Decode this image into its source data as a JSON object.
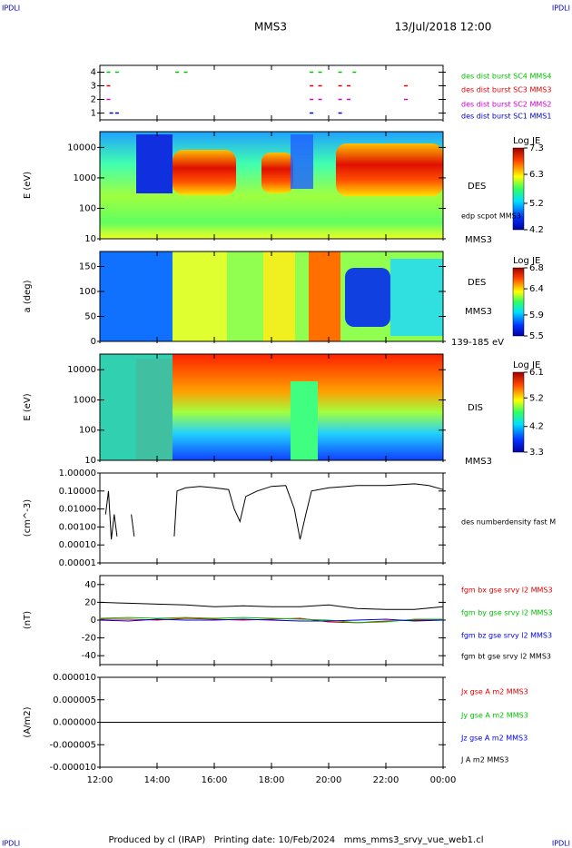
{
  "header": {
    "corner": "IPDLI",
    "title": "MMS3",
    "date": "13/Jul/2018 12:00"
  },
  "footer": {
    "text": "Produced by cl (IRAP)   Printing date: 10/Feb/2024   mms_mms3_srvy_vue_web1.cl"
  },
  "chart_data": [
    {
      "type": "scatter",
      "xlim": [
        12,
        24
      ],
      "ylim": [
        0.5,
        4.5
      ],
      "yticks": [
        1,
        2,
        3,
        4
      ],
      "series": [
        {
          "name": "des dist burst SC1 MMS1",
          "color": "#0000c0",
          "x": [
            12.4,
            12.6,
            19.4,
            20.4
          ],
          "values": [
            1,
            1,
            1,
            1
          ]
        },
        {
          "name": "des dist burst SC2 MMS2",
          "color": "#d000d0",
          "x": [
            12.3,
            19.4,
            19.7,
            20.4,
            20.7,
            22.7
          ],
          "values": [
            2,
            2,
            2,
            2,
            2,
            2
          ]
        },
        {
          "name": "des dist burst SC3 MMS3",
          "color": "#e00000",
          "x": [
            12.3,
            19.4,
            19.7,
            20.4,
            20.7,
            22.7
          ],
          "values": [
            3,
            3,
            3,
            3,
            3,
            3
          ]
        },
        {
          "name": "des dist burst SC4 MMS4",
          "color": "#00c000",
          "x": [
            12.3,
            12.6,
            14.7,
            15.0,
            19.4,
            19.7,
            20.4,
            20.9
          ],
          "values": [
            4,
            4,
            4,
            4,
            4,
            4,
            4,
            4
          ]
        }
      ]
    },
    {
      "type": "spectrogram",
      "ylabel": "E (eV)",
      "xlim": [
        12,
        24
      ],
      "ylim": [
        10,
        33000
      ],
      "log": true,
      "yticks": [
        10,
        100,
        1000,
        10000
      ],
      "zlabel": "Log JE",
      "zlim": [
        4.2,
        7.3
      ],
      "zticks": [
        4.2,
        5.2,
        6.3,
        7.3
      ],
      "labels": [
        "DES",
        "edp scpot MMS3",
        "MMS3"
      ]
    },
    {
      "type": "spectrogram",
      "ylabel": "a (deg)",
      "xlim": [
        12,
        24
      ],
      "ylim": [
        0,
        180
      ],
      "yticks": [
        0,
        50,
        100,
        150
      ],
      "zlabel": "Log JE",
      "zlim": [
        5.5,
        6.8
      ],
      "zticks": [
        5.5,
        5.9,
        6.4,
        6.8
      ],
      "labels": [
        "DES",
        "MMS3",
        "139-185 eV"
      ]
    },
    {
      "type": "spectrogram",
      "ylabel": "E (eV)",
      "xlim": [
        12,
        24
      ],
      "ylim": [
        10,
        33000
      ],
      "log": true,
      "yticks": [
        10,
        100,
        1000,
        10000
      ],
      "zlabel": "Log JE",
      "zlim": [
        3.3,
        6.1
      ],
      "zticks": [
        3.3,
        4.2,
        5.2,
        6.1
      ],
      "labels": [
        "DIS",
        "MMS3"
      ]
    },
    {
      "type": "line",
      "ylabel": "(cm^-3)",
      "xlim": [
        12,
        24
      ],
      "ylim": [
        1e-05,
        1
      ],
      "log": true,
      "yticks": [
        {
          "value": 1,
          "label": "1.00000"
        },
        {
          "value": 0.1,
          "label": "0.10000"
        },
        {
          "value": 0.01,
          "label": "0.01000"
        },
        {
          "value": 0.001,
          "label": "0.00100"
        },
        {
          "value": 0.0001,
          "label": "0.00010"
        },
        {
          "value": 1e-05,
          "label": "0.00001"
        }
      ],
      "x": [
        12.2,
        12.3,
        12.4,
        12.5,
        12.6,
        12.7,
        13.1,
        13.2,
        13.3,
        14.6,
        14.7,
        15.0,
        15.5,
        16.0,
        16.5,
        16.7,
        16.9,
        17.1,
        17.5,
        18.0,
        18.5,
        18.8,
        19.0,
        19.2,
        19.4,
        20.0,
        21.0,
        22.0,
        23.0,
        23.5,
        24.0
      ],
      "series": [
        {
          "name": "des numberdensity fast M",
          "color": "#000000",
          "values": [
            0.005,
            0.1,
            0.0002,
            0.005,
            0.0003,
            null,
            0.005,
            0.0003,
            null,
            0.0003,
            0.1,
            0.15,
            0.18,
            0.15,
            0.12,
            0.01,
            0.002,
            0.05,
            0.1,
            0.18,
            0.2,
            0.01,
            0.0002,
            0.005,
            0.1,
            0.15,
            0.2,
            0.2,
            0.25,
            0.2,
            0.12
          ]
        }
      ]
    },
    {
      "type": "line",
      "ylabel": "(nT)",
      "xlim": [
        12,
        24
      ],
      "ylim": [
        -50,
        50
      ],
      "yticks": [
        40,
        20,
        0,
        -20,
        -40
      ],
      "x": [
        12,
        13,
        14,
        15,
        16,
        17,
        18,
        19,
        20,
        21,
        22,
        23,
        24
      ],
      "series": [
        {
          "name": "fgm bx gse srvy l2 MMS3",
          "color": "#e00000",
          "values": [
            1,
            1,
            0,
            2,
            1,
            0,
            1,
            2,
            -2,
            -3,
            -1,
            0,
            0
          ]
        },
        {
          "name": "fgm by gse srvy l2 MMS3",
          "color": "#00c000",
          "values": [
            2,
            3,
            2,
            3,
            2,
            3,
            2,
            1,
            0,
            -3,
            -2,
            1,
            1
          ]
        },
        {
          "name": "fgm bz gse srvy l2 MMS3",
          "color": "#0000e0",
          "values": [
            0,
            -1,
            1,
            0,
            0,
            1,
            0,
            -1,
            -1,
            0,
            1,
            -1,
            0
          ]
        },
        {
          "name": "fgm bt gse srvy l2 MMS3",
          "color": "#000000",
          "values": [
            20,
            19,
            18,
            17,
            15,
            16,
            15,
            15,
            17,
            13,
            12,
            12,
            15
          ]
        }
      ]
    },
    {
      "type": "line",
      "ylabel": "(A/m2)",
      "xlim": [
        12,
        24
      ],
      "ylim": [
        -1e-05,
        1e-05
      ],
      "yticks": [
        {
          "value": 1e-05,
          "label": "0.000010"
        },
        {
          "value": 5e-06,
          "label": "0.000005"
        },
        {
          "value": 0,
          "label": "0.000000"
        },
        {
          "value": -5e-06,
          "label": "-0.000005"
        },
        {
          "value": -1e-05,
          "label": "-0.000010"
        }
      ],
      "xticks": [
        {
          "value": 12,
          "label": "12:00"
        },
        {
          "value": 14,
          "label": "14:00"
        },
        {
          "value": 16,
          "label": "16:00"
        },
        {
          "value": 18,
          "label": "18:00"
        },
        {
          "value": 20,
          "label": "20:00"
        },
        {
          "value": 22,
          "label": "22:00"
        },
        {
          "value": 24,
          "label": "00:00"
        }
      ],
      "x": [
        12,
        13,
        14,
        15,
        16,
        17,
        18,
        19,
        20,
        21,
        22,
        23,
        24
      ],
      "series": [
        {
          "name": "Jx gse A m2 MMS3",
          "color": "#e00000",
          "values": [
            0,
            0,
            0,
            0,
            0,
            0,
            0,
            0,
            0,
            0,
            0,
            0,
            0
          ]
        },
        {
          "name": "Jy gse A m2 MMS3",
          "color": "#00c000",
          "values": [
            0,
            0,
            0,
            0,
            0,
            0,
            0,
            0,
            0,
            0,
            0,
            0,
            0
          ]
        },
        {
          "name": "Jz gse A m2 MMS3",
          "color": "#0000e0",
          "values": [
            0,
            0,
            0,
            0,
            0,
            0,
            0,
            0,
            0,
            0,
            0,
            0,
            0
          ]
        },
        {
          "name": "J A m2 MMS3",
          "color": "#000000",
          "values": [
            0,
            0,
            0,
            0,
            0,
            0,
            0,
            0,
            0,
            0,
            0,
            0,
            0
          ]
        }
      ]
    }
  ]
}
